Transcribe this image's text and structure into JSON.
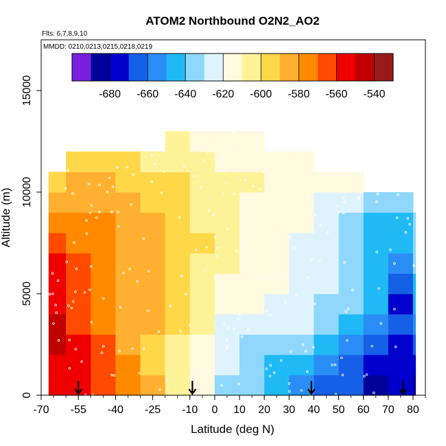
{
  "chart_data": {
    "type": "heatmap",
    "title": "ATOM2 Northbound O2N2_AO2",
    "subtitle_flights": "Flts: 6,7,8,9,10",
    "subtitle_dates": "MMDD: 0210,0213,0215,0218,0219",
    "xlabel": "Latitude (deg N)",
    "ylabel": "Altitude (m)",
    "xlim": [
      -70,
      85
    ],
    "ylim": [
      0,
      17500
    ],
    "x_ticks": [
      -70,
      -55,
      -40,
      -25,
      -10,
      0,
      10,
      20,
      30,
      40,
      50,
      60,
      70,
      80
    ],
    "x_tick_labels": [
      "-70",
      "-55",
      "-40",
      "-25",
      "-10",
      "0",
      "10",
      "20",
      "30",
      "40",
      "50",
      "60",
      "70",
      "80"
    ],
    "y_ticks": [
      0,
      5000,
      10000,
      15000
    ],
    "y_tick_labels": [
      "0",
      "5000",
      "10000",
      "15000"
    ],
    "colorbar": {
      "range": [
        -700,
        -530
      ],
      "ticks": [
        -680,
        -660,
        -640,
        -620,
        -600,
        -580,
        -560,
        -540
      ],
      "tick_labels": [
        "-680",
        "-660",
        "-640",
        "-620",
        "-600",
        "-580",
        "-560",
        "-540"
      ],
      "colors": [
        "#7a1fe0",
        "#00009a",
        "#0000cc",
        "#1560e6",
        "#2a8df5",
        "#1fbaf5",
        "#8fd8fb",
        "#dff3ff",
        "#fffae0",
        "#fff39a",
        "#ffd84a",
        "#ffb030",
        "#ff8a00",
        "#ff4a00",
        "#ee0000",
        "#c00000",
        "#991a1a"
      ]
    },
    "arrow_latitudes": [
      -55,
      -9,
      39,
      76
    ],
    "heatmap": {
      "x": [
        -70,
        -60,
        -50,
        -40,
        -30,
        -20,
        -10,
        0,
        10,
        20,
        30,
        40,
        50,
        60,
        70,
        80
      ],
      "y": [
        500,
        1500,
        2500,
        3500,
        4500,
        5500,
        6500,
        7500,
        8500,
        9500,
        10500,
        11500,
        12500
      ],
      "values": [
        [
          -555,
          -560,
          -568,
          -578,
          -590,
          -604,
          -620,
          -632,
          -640,
          -648,
          -655,
          -662,
          -670,
          -690,
          -680,
          -685
        ],
        [
          -552,
          -560,
          -570,
          -580,
          -592,
          -604,
          -618,
          -630,
          -638,
          -642,
          -648,
          -652,
          -662,
          -672,
          -680,
          -676
        ],
        [
          -550,
          -560,
          -570,
          -582,
          -594,
          -602,
          -612,
          -630,
          -636,
          -638,
          -640,
          -645,
          -655,
          -662,
          -672,
          -670
        ],
        [
          -550,
          -562,
          -572,
          -582,
          -590,
          -600,
          -608,
          -624,
          -628,
          -626,
          -630,
          -636,
          -645,
          -652,
          -662,
          -660
        ],
        [
          -552,
          -564,
          -575,
          -585,
          -590,
          -598,
          -606,
          -616,
          -620,
          -622,
          -626,
          -632,
          -640,
          -650,
          -675,
          -650
        ],
        [
          -554,
          -568,
          -578,
          -586,
          -590,
          -596,
          -604,
          -612,
          -616,
          -620,
          -624,
          -630,
          -640,
          -648,
          -670,
          -646
        ],
        [
          -558,
          -570,
          -578,
          -582,
          -586,
          -594,
          -602,
          -608,
          -614,
          -620,
          -624,
          -630,
          -638,
          -646,
          -660,
          -640
        ],
        [
          -570,
          -574,
          -580,
          -584,
          -588,
          -594,
          -600,
          -606,
          -614,
          -618,
          -622,
          -628,
          -636,
          -646,
          -650,
          -640
        ],
        [
          -574,
          -576,
          -580,
          -586,
          -590,
          -596,
          -602,
          -608,
          -612,
          -616,
          -620,
          -626,
          -634,
          -644,
          -648,
          -636
        ],
        [
          -584,
          -584,
          -586,
          -590,
          -592,
          -598,
          -604,
          -608,
          -612,
          -614,
          -618,
          -622,
          -628,
          -636,
          -640,
          null
        ],
        [
          -592,
          -588,
          -590,
          -592,
          -594,
          -600,
          -606,
          -608,
          -610,
          -612,
          -614,
          -616,
          -620,
          null,
          null,
          null
        ],
        [
          null,
          -596,
          -596,
          -598,
          -602,
          -606,
          -610,
          -612,
          -612,
          -614,
          -616,
          null,
          null,
          null,
          null,
          null
        ],
        [
          null,
          null,
          null,
          null,
          null,
          -610,
          -612,
          -612,
          -614,
          null,
          null,
          null,
          null,
          null,
          null,
          null
        ]
      ]
    }
  }
}
